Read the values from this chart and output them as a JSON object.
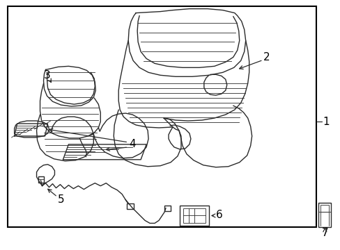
{
  "background_color": "#ffffff",
  "border_color": "#000000",
  "line_color": "#2a2a2a",
  "label_color": "#000000",
  "figsize": [
    4.89,
    3.6
  ],
  "dpi": 100
}
